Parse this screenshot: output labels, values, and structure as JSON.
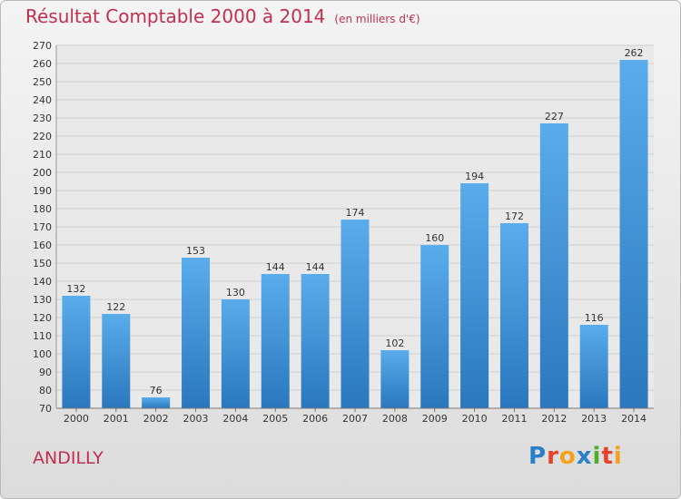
{
  "header": {
    "title": "Résultat Comptable 2000 à 2014",
    "subtitle": "(en milliers d'€)"
  },
  "footer": {
    "commune": "ANDILLY",
    "logo": [
      "P",
      "r",
      "o",
      "x",
      "i",
      "t",
      "i"
    ],
    "logo_colors": [
      "#2a7fc9",
      "#e8412c",
      "#f4a21a",
      "#2a7fc9",
      "#4caf2a",
      "#e8412c",
      "#f4a21a"
    ]
  },
  "chart_data": {
    "type": "bar",
    "title": "Résultat Comptable 2000 à 2014",
    "subtitle": "(en milliers d'€)",
    "categories": [
      "2000",
      "2001",
      "2002",
      "2003",
      "2004",
      "2005",
      "2006",
      "2007",
      "2008",
      "2009",
      "2010",
      "2011",
      "2012",
      "2013",
      "2014"
    ],
    "values": [
      132,
      122,
      76,
      153,
      130,
      144,
      144,
      174,
      102,
      160,
      194,
      172,
      227,
      116,
      262
    ],
    "ylim": [
      70,
      270
    ],
    "ytick_step": 10,
    "grid": true,
    "bar_color_top": "#5aaceb",
    "bar_color_bottom": "#2a77bd"
  }
}
